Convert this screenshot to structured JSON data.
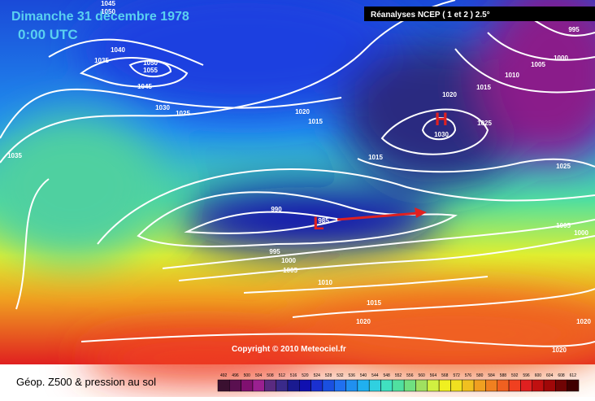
{
  "header": {
    "date": "Dimanche 31 décembre 1978",
    "time": "0:00 UTC",
    "source": "Réanalyses NCEP ( 1 et 2 ) 2.5°"
  },
  "centers": [
    {
      "label": "H"
    },
    {
      "label": "L"
    }
  ],
  "isobar_labels": [
    1045,
    1050,
    1040,
    1035,
    1050,
    1055,
    1045,
    1030,
    1025,
    1035,
    1020,
    1015,
    990,
    985,
    995,
    1000,
    1005,
    1010,
    1015,
    1020,
    1020,
    1015,
    1025,
    1030,
    1015,
    1010,
    1005,
    1000,
    995,
    1025,
    1005,
    1000,
    1020,
    1020
  ],
  "copyright": "Copyright © 2010 Meteociel.fr",
  "legend": {
    "title": "Géop. Z500 & pression au sol",
    "scale": [
      492,
      496,
      500,
      504,
      508,
      512,
      516,
      520,
      524,
      528,
      532,
      536,
      540,
      544,
      548,
      552,
      556,
      560,
      564,
      568,
      572,
      576,
      580,
      584,
      588,
      592,
      596,
      600,
      604,
      608,
      612
    ],
    "colors": [
      "#3a1030",
      "#5a1050",
      "#801070",
      "#9a2090",
      "#5a2a80",
      "#3a2a8a",
      "#1a1a90",
      "#1010b0",
      "#1a30d0",
      "#1a50e0",
      "#2070f0",
      "#2090f0",
      "#20b0f0",
      "#30d0e0",
      "#40e0c0",
      "#50e0a0",
      "#70e080",
      "#a0e060",
      "#d0f040",
      "#f0f020",
      "#f0e020",
      "#f0c020",
      "#f0a020",
      "#f08020",
      "#f06020",
      "#f04020",
      "#e02020",
      "#c01010",
      "#a00808",
      "#700404",
      "#400000"
    ]
  }
}
